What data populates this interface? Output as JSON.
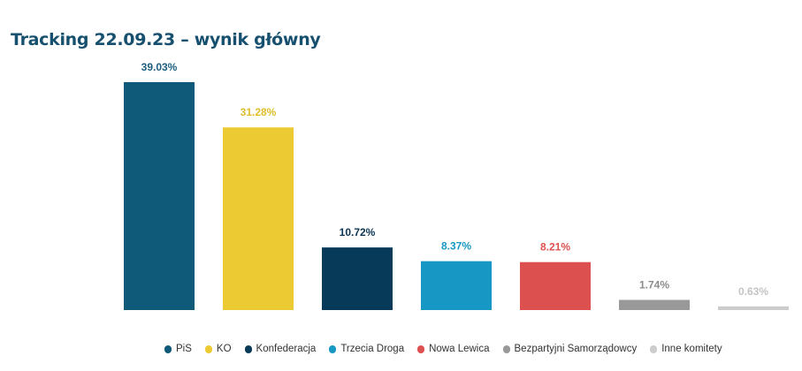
{
  "chart_data": {
    "type": "bar",
    "title": "Tracking 22.09.23 – wynik główny",
    "categories": [
      "PiS",
      "KO",
      "Konfederacja",
      "Trzecia Droga",
      "Nowa Lewica",
      "Bezpartyjni Samorządowcy",
      "Inne komitety"
    ],
    "values": [
      39.03,
      31.28,
      10.72,
      8.37,
      8.21,
      1.74,
      0.63
    ],
    "data_labels": [
      "39.03%",
      "31.28%",
      "10.72%",
      "8.37%",
      "8.21%",
      "1.74%",
      "0.63%"
    ],
    "colors": [
      "#0f5a78",
      "#ecca33",
      "#073a59",
      "#1798c4",
      "#dd5050",
      "#999999",
      "#cccccc"
    ],
    "label_colors": [
      "#1d5e7e",
      "#e2bd2b",
      "#0b3552",
      "#1798c4",
      "#dd5050",
      "#8c8c8c",
      "#c4c4c4"
    ],
    "ylim": [
      0,
      40
    ],
    "grid": false,
    "legend_position": "bottom"
  }
}
